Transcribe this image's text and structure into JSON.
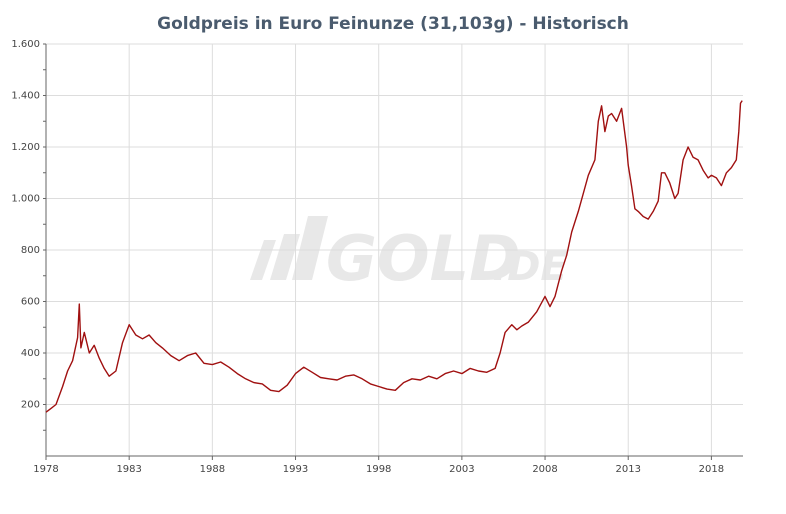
{
  "chart_data": {
    "type": "line",
    "title": "Goldpreis in Euro Feinunze (31,103g) - Historisch",
    "xlabel": "",
    "ylabel": "",
    "xlim": [
      1978,
      2019.9
    ],
    "ylim": [
      0,
      1600
    ],
    "x_ticks": [
      1978,
      1983,
      1988,
      1993,
      1998,
      2003,
      2008,
      2013,
      2018
    ],
    "x_tick_labels": [
      "1978",
      "1983",
      "1988",
      "1993",
      "1998",
      "2003",
      "2008",
      "2013",
      "2018"
    ],
    "y_ticks": [
      200,
      400,
      600,
      800,
      1000,
      1200,
      1400,
      1600
    ],
    "y_tick_labels": [
      "200",
      "400",
      "600",
      "800",
      "1.000",
      "1.200",
      "1.400",
      "1.600"
    ],
    "grid": true,
    "legend": "none",
    "colors": {
      "line": "#a01010",
      "grid": "#dddddd",
      "axis": "#666666",
      "title": "#4a5b6e",
      "watermark": "#e8e8e8"
    },
    "watermark": {
      "text": "GOLD",
      "suffix": ".DE"
    },
    "series": [
      {
        "x": [
          1978.0,
          1978.3,
          1978.6,
          1979.0,
          1979.3,
          1979.6,
          1979.9,
          1980.0,
          1980.1,
          1980.3,
          1980.6,
          1980.9,
          1981.2,
          1981.5,
          1981.8,
          1982.2,
          1982.6,
          1983.0,
          1983.4,
          1983.8,
          1984.2,
          1984.6,
          1985.0,
          1985.5,
          1986.0,
          1986.5,
          1987.0,
          1987.5,
          1988.0,
          1988.5,
          1989.0,
          1989.5,
          1990.0,
          1990.5,
          1991.0,
          1991.5,
          1992.0,
          1992.5,
          1993.0,
          1993.5,
          1994.0,
          1994.5,
          1995.0,
          1995.5,
          1996.0,
          1996.5,
          1997.0,
          1997.5,
          1998.0,
          1998.5,
          1999.0,
          1999.5,
          2000.0,
          2000.5,
          2001.0,
          2001.5,
          2002.0,
          2002.5,
          2003.0,
          2003.5,
          2004.0,
          2004.5,
          2005.0,
          2005.3,
          2005.6,
          2006.0,
          2006.3,
          2006.6,
          2007.0,
          2007.5,
          2008.0,
          2008.3,
          2008.6,
          2009.0,
          2009.3,
          2009.6,
          2010.0,
          2010.3,
          2010.6,
          2011.0,
          2011.2,
          2011.4,
          2011.6,
          2011.8,
          2012.0,
          2012.3,
          2012.6,
          2012.9,
          2013.0,
          2013.2,
          2013.4,
          2013.6,
          2013.9,
          2014.2,
          2014.5,
          2014.8,
          2015.0,
          2015.2,
          2015.5,
          2015.8,
          2016.0,
          2016.3,
          2016.6,
          2016.9,
          2017.2,
          2017.5,
          2017.8,
          2018.0,
          2018.3,
          2018.6,
          2018.9,
          2019.2,
          2019.5,
          2019.65,
          2019.75,
          2019.85
        ],
        "y": [
          170,
          185,
          200,
          270,
          330,
          370,
          460,
          590,
          420,
          480,
          400,
          430,
          380,
          340,
          310,
          330,
          440,
          510,
          470,
          455,
          470,
          440,
          420,
          390,
          370,
          390,
          400,
          360,
          355,
          365,
          345,
          320,
          300,
          285,
          280,
          255,
          250,
          275,
          320,
          345,
          325,
          305,
          300,
          295,
          310,
          315,
          300,
          280,
          270,
          260,
          255,
          285,
          300,
          295,
          310,
          300,
          320,
          330,
          320,
          340,
          330,
          325,
          340,
          400,
          480,
          510,
          490,
          505,
          520,
          560,
          620,
          580,
          620,
          720,
          780,
          870,
          950,
          1020,
          1090,
          1150,
          1300,
          1360,
          1260,
          1320,
          1330,
          1300,
          1350,
          1200,
          1130,
          1050,
          960,
          950,
          930,
          920,
          950,
          990,
          1100,
          1100,
          1060,
          1000,
          1020,
          1150,
          1200,
          1160,
          1150,
          1110,
          1080,
          1090,
          1080,
          1050,
          1100,
          1120,
          1150,
          1260,
          1370,
          1380
        ]
      }
    ]
  }
}
